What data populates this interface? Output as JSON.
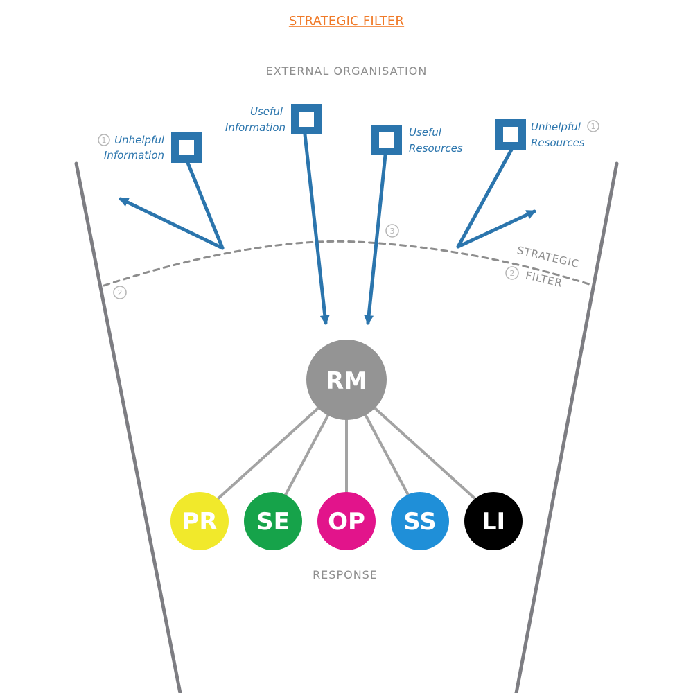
{
  "title": "STRATEGIC FILTER",
  "header": "EXTERNAL  ORGANISATION",
  "footer": "RESPONSE",
  "filter_label": {
    "line1": "STRATEGIC",
    "line2": "FILTER"
  },
  "items": [
    {
      "line1": "Unhelpful",
      "line2": "Information",
      "badge": "1"
    },
    {
      "line1": "Useful",
      "line2": "Information"
    },
    {
      "line1": "Useful",
      "line2": "Resources"
    },
    {
      "line1": "Unhelpful",
      "line2": "Resources",
      "badge": "1"
    }
  ],
  "markers": {
    "left_two": "2",
    "center_three": "3",
    "filter_two": "2"
  },
  "center_node": "RM",
  "nodes": [
    {
      "label": "PR",
      "color": "#f1e92b"
    },
    {
      "label": "SE",
      "color": "#16a34a"
    },
    {
      "label": "OP",
      "color": "#e2148b"
    },
    {
      "label": "SS",
      "color": "#1f8fd8"
    },
    {
      "label": "LI",
      "color": "#000000"
    }
  ],
  "colors": {
    "title": "#f07a28",
    "gray_text": "#8d8d8d",
    "blue": "#2b75ad",
    "funnel": "#7d7d82",
    "connector": "#a3a3a3",
    "rm_fill": "#949494",
    "marker_stroke": "#b5b5b5"
  }
}
